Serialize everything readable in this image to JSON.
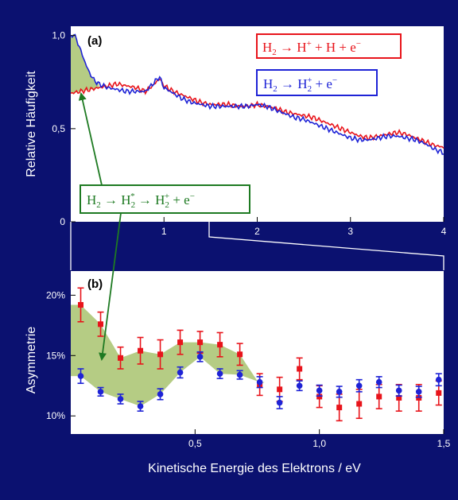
{
  "colors": {
    "background": "#0b1170",
    "panel": "#ffffff",
    "red": "#e8141b",
    "blue": "#1e23d6",
    "green_fill": "#b5cc84",
    "green_line": "#1e7a22"
  },
  "chart_data": [
    {
      "id": "a",
      "type": "line",
      "panel_label": "(a)",
      "ylabel": "Relative Häufigkeit",
      "xlabel": "",
      "xlim": [
        0,
        4
      ],
      "ylim": [
        0,
        1.05
      ],
      "xticks": [
        "1",
        "2",
        "3",
        "4"
      ],
      "yticks": [
        "0",
        "0,5",
        "1,0"
      ],
      "legend": [
        {
          "series": "red",
          "text": "H₂ → H⁺ + H + e⁻"
        },
        {
          "series": "blue",
          "text": "H₂ → H₂⁺ + e⁻"
        }
      ],
      "annotation": "H₂ → H₂* → H₂⁺ + e⁻",
      "series": [
        {
          "color": "red",
          "x": [
            0,
            0.1,
            0.2,
            0.3,
            0.4,
            0.5,
            0.6,
            0.7,
            0.8,
            0.9,
            0.95,
            1.0,
            1.1,
            1.2,
            1.3,
            1.4,
            1.5,
            1.6,
            1.7,
            1.8,
            1.9,
            2.0,
            2.1,
            2.2,
            2.3,
            2.4,
            2.5,
            2.6,
            2.7,
            2.8,
            2.9,
            3.0,
            3.1,
            3.2,
            3.3,
            3.4,
            3.5,
            3.6,
            3.7,
            3.8,
            3.9,
            4.0
          ],
          "y": [
            0.69,
            0.7,
            0.71,
            0.72,
            0.73,
            0.74,
            0.73,
            0.72,
            0.7,
            0.74,
            0.77,
            0.73,
            0.7,
            0.68,
            0.66,
            0.64,
            0.63,
            0.63,
            0.63,
            0.62,
            0.62,
            0.63,
            0.62,
            0.61,
            0.59,
            0.58,
            0.57,
            0.56,
            0.54,
            0.52,
            0.5,
            0.48,
            0.46,
            0.45,
            0.46,
            0.47,
            0.48,
            0.47,
            0.45,
            0.43,
            0.41,
            0.4
          ]
        },
        {
          "color": "blue",
          "x": [
            0,
            0.03,
            0.06,
            0.1,
            0.15,
            0.2,
            0.25,
            0.3,
            0.4,
            0.5,
            0.6,
            0.7,
            0.8,
            0.9,
            0.95,
            1.0,
            1.1,
            1.2,
            1.3,
            1.4,
            1.5,
            1.6,
            1.7,
            1.8,
            1.9,
            2.0,
            2.1,
            2.2,
            2.3,
            2.4,
            2.5,
            2.6,
            2.7,
            2.8,
            2.9,
            3.0,
            3.1,
            3.2,
            3.3,
            3.4,
            3.5,
            3.6,
            3.7,
            3.8,
            3.9,
            4.0
          ],
          "y": [
            0.99,
            1.01,
            0.98,
            0.93,
            0.86,
            0.8,
            0.76,
            0.74,
            0.72,
            0.71,
            0.7,
            0.7,
            0.7,
            0.75,
            0.78,
            0.72,
            0.69,
            0.66,
            0.64,
            0.63,
            0.62,
            0.62,
            0.62,
            0.62,
            0.62,
            0.63,
            0.62,
            0.6,
            0.58,
            0.56,
            0.55,
            0.53,
            0.51,
            0.49,
            0.47,
            0.45,
            0.44,
            0.44,
            0.45,
            0.46,
            0.46,
            0.45,
            0.44,
            0.42,
            0.39,
            0.37
          ]
        }
      ],
      "shaded_region": {
        "x_from": 0,
        "x_to": 0.3,
        "between": [
          "blue",
          "red"
        ]
      }
    },
    {
      "id": "b",
      "type": "scatter",
      "panel_label": "(b)",
      "ylabel": "Asymmetrie",
      "xlabel": "Kinetische Energie des Elektrons / eV",
      "xlim": [
        0,
        1.5
      ],
      "ylim": [
        8.5,
        22
      ],
      "xticks": [
        "0,5",
        "1,0",
        "1,5"
      ],
      "yticks": [
        "10%",
        "15%",
        "20%"
      ],
      "series": [
        {
          "color": "red",
          "marker": "square",
          "x": [
            0.04,
            0.12,
            0.2,
            0.28,
            0.36,
            0.44,
            0.52,
            0.6,
            0.68,
            0.76,
            0.84,
            0.92,
            1.0,
            1.08,
            1.16,
            1.24,
            1.32,
            1.4,
            1.48
          ],
          "y": [
            19.2,
            17.6,
            14.8,
            15.4,
            15.1,
            16.1,
            16.1,
            15.9,
            15.1,
            12.6,
            12.2,
            13.9,
            11.6,
            10.7,
            11.0,
            11.6,
            11.5,
            11.5,
            11.9
          ],
          "err": [
            1.4,
            1.0,
            0.9,
            1.1,
            1.2,
            1.0,
            0.9,
            1.0,
            0.9,
            0.9,
            1.0,
            0.9,
            0.9,
            1.1,
            1.2,
            1.0,
            1.1,
            1.1,
            1.0
          ]
        },
        {
          "color": "blue",
          "marker": "circle",
          "x": [
            0.04,
            0.12,
            0.2,
            0.28,
            0.36,
            0.44,
            0.52,
            0.6,
            0.68,
            0.76,
            0.84,
            0.92,
            1.0,
            1.08,
            1.16,
            1.24,
            1.32,
            1.4,
            1.48
          ],
          "y": [
            13.3,
            12.0,
            11.4,
            10.8,
            11.8,
            13.6,
            14.9,
            13.5,
            13.4,
            12.8,
            11.1,
            12.5,
            12.1,
            12.0,
            12.5,
            12.8,
            12.1,
            12.0,
            13.0
          ],
          "err": [
            0.6,
            0.35,
            0.4,
            0.4,
            0.45,
            0.45,
            0.4,
            0.4,
            0.35,
            0.45,
            0.5,
            0.4,
            0.45,
            0.45,
            0.5,
            0.45,
            0.45,
            0.45,
            0.5
          ]
        }
      ],
      "shaded_region": {
        "x_from": 0,
        "x_to": 0.76,
        "between": [
          "red",
          "blue"
        ]
      }
    }
  ]
}
